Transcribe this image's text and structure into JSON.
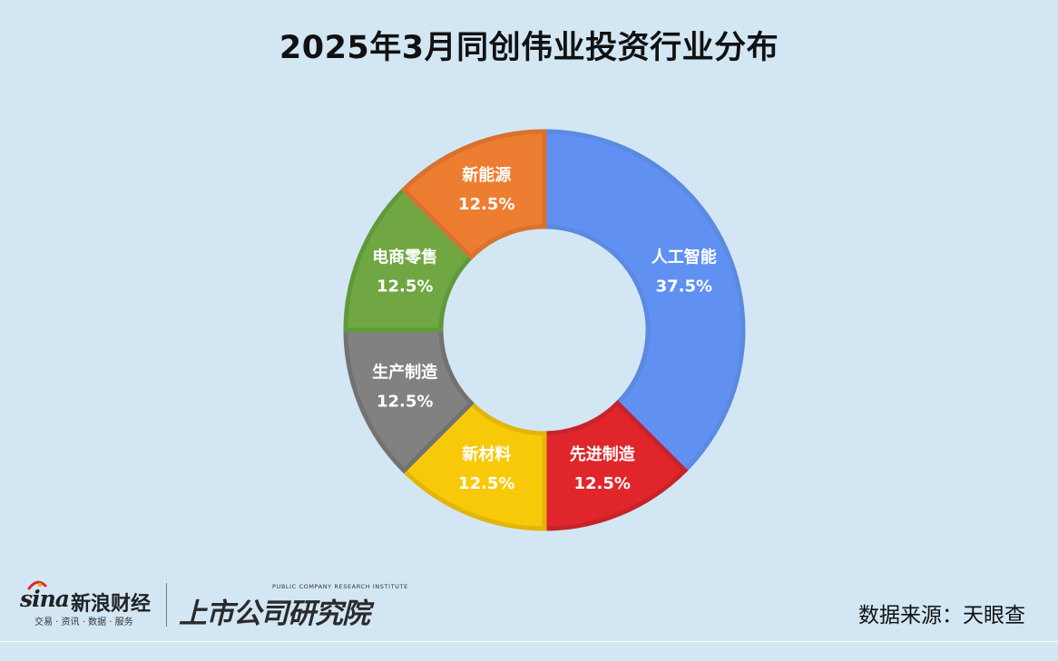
{
  "chart_data": {
    "type": "pie",
    "title": "2025年3月同创伟业投资行业分布",
    "subtitle": "",
    "categories": [
      "人工智能",
      "先进制造",
      "新材料",
      "生产制造",
      "电商零售",
      "新能源"
    ],
    "values": [
      37.5,
      12.5,
      12.5,
      12.5,
      12.5,
      12.5
    ],
    "data_labels": [
      "37.5%",
      "12.5%",
      "12.5%",
      "12.5%",
      "12.5%",
      "12.5%"
    ],
    "colors": [
      "#6190f3",
      "#e0262b",
      "#f8c909",
      "#818181",
      "#70a743",
      "#ed7d31"
    ],
    "stroke_colors": [
      "#5b8ae0",
      "#c8232a",
      "#e2b50b",
      "#727272",
      "#5f9a3a",
      "#d8722c"
    ],
    "donut": true,
    "legend": "none",
    "grid": false
  },
  "footer": {
    "source": "数据来源：天眼查",
    "sina_word": "sina",
    "sina_cn": "新浪财经",
    "sina_sub": "交易 · 资讯 · 数据 · 服务",
    "institute_en": "PUBLIC COMPANY RESEARCH INSTITUTE",
    "institute_cn": "上市公司研究院"
  }
}
